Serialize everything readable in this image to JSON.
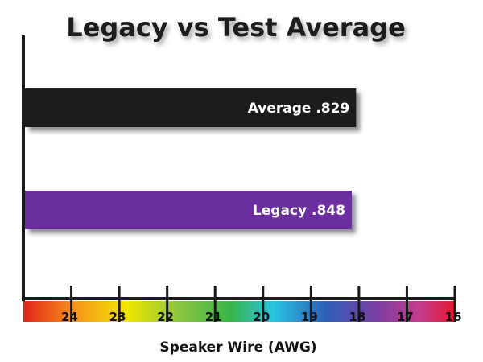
{
  "chart_data": {
    "type": "bar",
    "orientation": "horizontal",
    "title": "Legacy vs Test Average",
    "xlabel": "Speaker Wire (AWG)",
    "ylabel": "",
    "categories": [
      "Average",
      "Legacy"
    ],
    "values": [
      18.06,
      18.15
    ],
    "value_labels": [
      "Average .829",
      "Legacy .848"
    ],
    "bar_colors": [
      "#1f1f1f",
      "#6a2d9e"
    ],
    "xlim": [
      25,
      16
    ],
    "x_ticks": [
      24,
      23,
      22,
      21,
      20,
      19,
      18,
      17,
      16
    ],
    "grid": false,
    "legend": "none",
    "axis_background": "rainbow gradient"
  }
}
